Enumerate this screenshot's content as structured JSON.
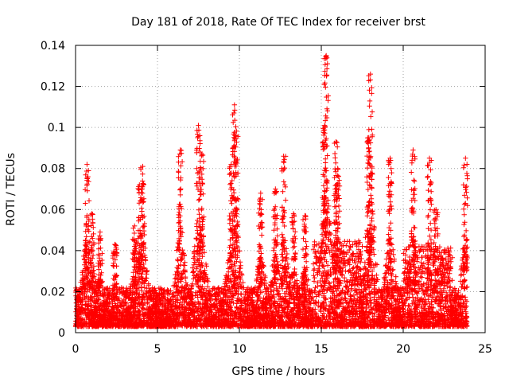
{
  "chart_data": {
    "type": "scatter",
    "title": "Day 181 of 2018, Rate Of TEC Index for receiver brst",
    "xlabel": "GPS time / hours",
    "ylabel": "ROTI / TECUs",
    "xlim": [
      0,
      25
    ],
    "ylim": [
      0,
      0.14
    ],
    "x_ticks": [
      0,
      5,
      10,
      15,
      20,
      25
    ],
    "x_tick_labels": [
      "0",
      "5",
      "10",
      "15",
      "20",
      "25"
    ],
    "y_ticks": [
      0,
      0.02,
      0.04,
      0.06,
      0.08,
      0.1,
      0.12,
      0.14
    ],
    "y_tick_labels": [
      "0",
      "0.02",
      "0.04",
      "0.06",
      "0.08",
      "0.1",
      "0.12",
      "0.14"
    ],
    "grid": true,
    "marker": "plus",
    "marker_color": "#ff0000",
    "x_data_range": [
      0,
      23.9
    ],
    "typical_band": [
      0.003,
      0.04
    ],
    "bursts": [
      {
        "x": 0.7,
        "peak": 0.082
      },
      {
        "x": 1.0,
        "peak": 0.058
      },
      {
        "x": 1.5,
        "peak": 0.049
      },
      {
        "x": 2.4,
        "peak": 0.043
      },
      {
        "x": 3.6,
        "peak": 0.052
      },
      {
        "x": 3.9,
        "peak": 0.072
      },
      {
        "x": 4.1,
        "peak": 0.081
      },
      {
        "x": 6.4,
        "peak": 0.089
      },
      {
        "x": 7.5,
        "peak": 0.101
      },
      {
        "x": 7.7,
        "peak": 0.087
      },
      {
        "x": 9.5,
        "peak": 0.082
      },
      {
        "x": 9.7,
        "peak": 0.111
      },
      {
        "x": 9.8,
        "peak": 0.096
      },
      {
        "x": 11.3,
        "peak": 0.068
      },
      {
        "x": 12.2,
        "peak": 0.07
      },
      {
        "x": 12.7,
        "peak": 0.086
      },
      {
        "x": 13.3,
        "peak": 0.058
      },
      {
        "x": 14.0,
        "peak": 0.057
      },
      {
        "x": 15.2,
        "peak": 0.101
      },
      {
        "x": 15.3,
        "peak": 0.135
      },
      {
        "x": 15.9,
        "peak": 0.093
      },
      {
        "x": 16.0,
        "peak": 0.08
      },
      {
        "x": 17.9,
        "peak": 0.095
      },
      {
        "x": 18.0,
        "peak": 0.126
      },
      {
        "x": 19.2,
        "peak": 0.085
      },
      {
        "x": 20.6,
        "peak": 0.089
      },
      {
        "x": 21.6,
        "peak": 0.085
      },
      {
        "x": 22.0,
        "peak": 0.06
      },
      {
        "x": 23.8,
        "peak": 0.085
      }
    ]
  }
}
